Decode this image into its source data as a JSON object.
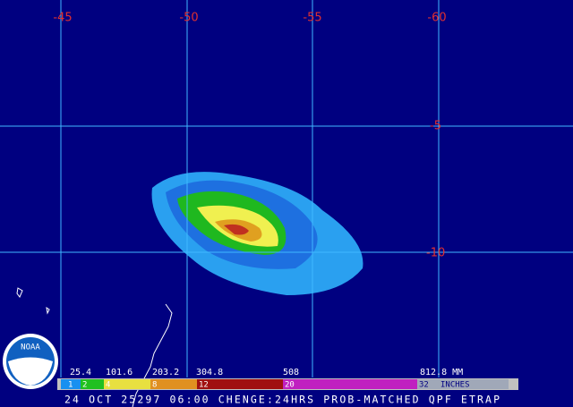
{
  "map": {
    "longitude_labels": [
      "-45",
      "-50",
      "-55",
      "-60"
    ],
    "latitude_labels": [
      "-5",
      "-10"
    ],
    "legend": {
      "mm_labels": [
        "25.4",
        "101.6",
        "203.2",
        "304.8",
        "508",
        "812.8 MM"
      ],
      "inch_labels": [
        "1",
        "2",
        "4",
        "8",
        "12",
        "20",
        "32",
        "INCHES"
      ]
    },
    "footer": "24 OCT 25297 06:00 CHENGE:24HRS PROB-MATCHED QPF ETRAP",
    "logo": "NOAA"
  }
}
